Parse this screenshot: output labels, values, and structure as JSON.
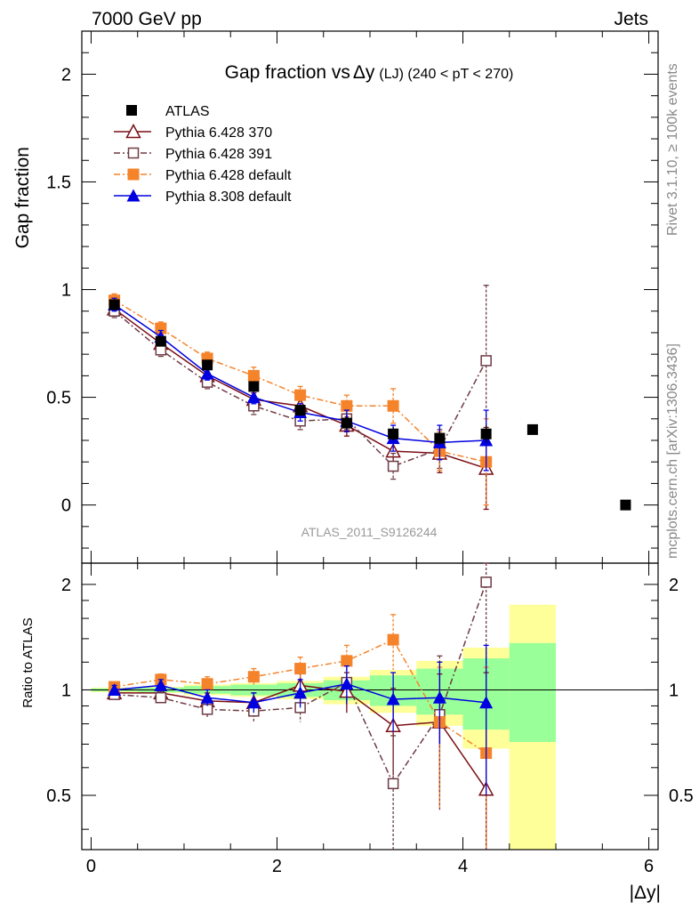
{
  "header": {
    "left": "7000 GeV pp",
    "right": "Jets"
  },
  "side_labels": {
    "rivet": "Rivet 3.1.10, ≥ 100k events",
    "mcplots": "mcplots.cern.ch [arXiv:1306.3436]"
  },
  "chart_data": {
    "type": "scatter",
    "title": "Gap fraction vs Δy (LJ) (240 < pT < 270)",
    "title_parts": {
      "main": "Gap fraction vs",
      "delta": "Δy",
      "sub": "(LJ) (240 < pT < 270)"
    },
    "watermark": "ATLAS_2011_S9126244",
    "xlabel": "|Δy|",
    "ylabel": "Gap fraction",
    "ratio_ylabel": "Ratio to ATLAS",
    "xlim": [
      -0.1,
      6.1
    ],
    "ylim": [
      -0.27,
      2.2
    ],
    "ratio_ylim": [
      0.35,
      2.3
    ],
    "ratio_scale": "log",
    "x_ticks": [
      "0",
      "2",
      "4",
      "6"
    ],
    "y_ticks": [
      "0",
      "0.5",
      "1",
      "1.5",
      "2"
    ],
    "ratio_y_ticks": [
      "0.5",
      "1",
      "2"
    ],
    "legend_position": "top-left",
    "reference": {
      "name": "ATLAS",
      "color": "#000000",
      "x": [
        0.25,
        0.75,
        1.25,
        1.75,
        2.25,
        2.75,
        3.25,
        3.75,
        4.25,
        4.75,
        5.75
      ],
      "y": [
        0.93,
        0.76,
        0.65,
        0.55,
        0.44,
        0.38,
        0.33,
        0.31,
        0.33,
        0.35,
        0.0
      ],
      "err": [
        0.02,
        0.02,
        0.02,
        0.02,
        0.02,
        0.03,
        0.03,
        0.03,
        0.04,
        0.01,
        0.01
      ]
    },
    "ratio_bands": {
      "x_edges": [
        0,
        0.5,
        1.0,
        1.5,
        2.0,
        2.5,
        3.0,
        3.5,
        4.0,
        4.5,
        5.0
      ],
      "yellow_lo": [
        0.985,
        0.98,
        0.965,
        0.955,
        0.94,
        0.91,
        0.86,
        0.79,
        0.68,
        0.35
      ],
      "yellow_hi": [
        1.015,
        1.02,
        1.035,
        1.045,
        1.06,
        1.09,
        1.14,
        1.21,
        1.32,
        1.75
      ],
      "green_lo": [
        0.99,
        0.985,
        0.975,
        0.965,
        0.955,
        0.935,
        0.9,
        0.85,
        0.77,
        0.71
      ],
      "green_hi": [
        1.01,
        1.015,
        1.025,
        1.035,
        1.045,
        1.065,
        1.1,
        1.15,
        1.23,
        1.36
      ]
    },
    "series": [
      {
        "name": "Pythia 6.428 370",
        "color": "#7a0f16",
        "marker": "triangle-open",
        "dash": "",
        "x": [
          0.25,
          0.75,
          1.25,
          1.75,
          2.25,
          2.75,
          3.25,
          3.75,
          4.25
        ],
        "y": [
          0.91,
          0.75,
          0.6,
          0.49,
          0.46,
          0.37,
          0.25,
          0.24,
          0.17
        ],
        "err": [
          0.03,
          0.03,
          0.03,
          0.03,
          0.04,
          0.05,
          0.07,
          0.09,
          0.19
        ],
        "ratio": [
          0.98,
          0.98,
          0.93,
          0.92,
          1.03,
          0.99,
          0.79,
          0.81,
          0.52
        ],
        "ratio_err": [
          0.03,
          0.04,
          0.05,
          0.06,
          0.09,
          0.13,
          0.22,
          0.3,
          0.6
        ]
      },
      {
        "name": "Pythia 6.428 391",
        "color": "#6e3b44",
        "marker": "square-open",
        "dash": "7,3,2,3",
        "x": [
          0.25,
          0.75,
          1.25,
          1.75,
          2.25,
          2.75,
          3.25,
          3.75,
          4.25
        ],
        "y": [
          0.9,
          0.72,
          0.57,
          0.46,
          0.39,
          0.4,
          0.18,
          0.26,
          0.67
        ],
        "err": [
          0.03,
          0.03,
          0.03,
          0.04,
          0.04,
          0.05,
          0.06,
          0.09,
          0.35
        ],
        "ratio": [
          0.97,
          0.95,
          0.88,
          0.87,
          0.89,
          1.05,
          0.54,
          0.85,
          2.03
        ],
        "ratio_err": [
          0.03,
          0.04,
          0.05,
          0.06,
          0.08,
          0.14,
          0.2,
          0.4,
          1.1
        ]
      },
      {
        "name": "Pythia 6.428 default",
        "color": "#f5832a",
        "marker": "square-filled",
        "dash": "7,3,2,3",
        "x": [
          0.25,
          0.75,
          1.25,
          1.75,
          2.25,
          2.75,
          3.25,
          3.75,
          4.25
        ],
        "y": [
          0.95,
          0.82,
          0.68,
          0.6,
          0.51,
          0.46,
          0.46,
          0.25,
          0.2
        ],
        "err": [
          0.03,
          0.03,
          0.03,
          0.04,
          0.04,
          0.05,
          0.08,
          0.09,
          0.2
        ],
        "ratio": [
          1.02,
          1.07,
          1.04,
          1.09,
          1.15,
          1.21,
          1.39,
          0.81,
          0.66
        ],
        "ratio_err": [
          0.03,
          0.04,
          0.05,
          0.06,
          0.09,
          0.13,
          0.25,
          0.35,
          0.5
        ]
      },
      {
        "name": "Pythia 8.308 default",
        "color": "#0000e0",
        "marker": "triangle-filled",
        "dash": "",
        "x": [
          0.25,
          0.75,
          1.25,
          1.75,
          2.25,
          2.75,
          3.25,
          3.75,
          4.25
        ],
        "y": [
          0.93,
          0.78,
          0.61,
          0.5,
          0.43,
          0.39,
          0.31,
          0.29,
          0.3
        ],
        "err": [
          0.03,
          0.03,
          0.03,
          0.03,
          0.04,
          0.05,
          0.06,
          0.08,
          0.14
        ],
        "ratio": [
          1.0,
          1.03,
          0.95,
          0.92,
          0.98,
          1.04,
          0.94,
          0.95,
          0.92
        ],
        "ratio_err": [
          0.03,
          0.04,
          0.05,
          0.06,
          0.09,
          0.13,
          0.18,
          0.25,
          0.42
        ]
      }
    ]
  }
}
